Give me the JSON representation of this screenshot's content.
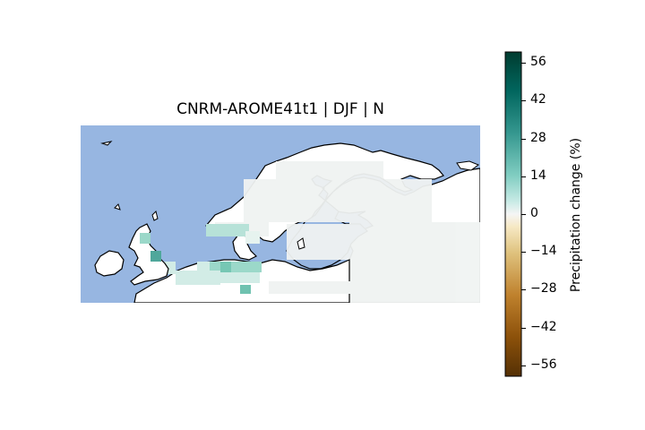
{
  "map": {
    "title": "CNRM-AROME41t1 | DJF | N",
    "sea_color": "#97b6e1",
    "land_color": "#ffffff",
    "coastline_color": "#000000",
    "region": "Northern Europe / Scandinavia",
    "precip_palette": {
      "near_zero": "#f0f3f2",
      "pos_low": "#d2ece6",
      "pos_mid": "#9bd8c9",
      "pos_high": "#4fa79b"
    }
  },
  "colorbar": {
    "label": "Precipitation change (%)",
    "range": [
      -60,
      60
    ],
    "ticks": [
      "56",
      "42",
      "28",
      "14",
      "0",
      "−14",
      "−28",
      "−42",
      "−56"
    ],
    "tick_values": [
      56,
      42,
      28,
      14,
      0,
      -14,
      -28,
      -42,
      -56
    ],
    "colormap": "BrBG"
  }
}
